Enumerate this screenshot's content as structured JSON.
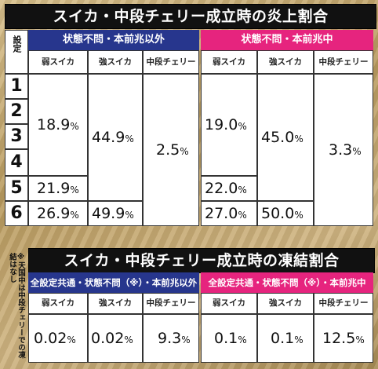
{
  "table1": {
    "title": "スイカ・中段チェリー成立時の炎上割合",
    "setting_label": "設定",
    "group_left": "状態不問・本前兆以外",
    "group_right": "状態不問・本前兆中",
    "col_headers": [
      "弱スイカ",
      "強スイカ",
      "中段チェリー",
      "弱スイカ",
      "強スイカ",
      "中段チェリー"
    ],
    "rows": [
      "1",
      "2",
      "3",
      "4",
      "5",
      "6"
    ],
    "left": {
      "weak_1to4": "18.9",
      "weak_5": "21.9",
      "weak_6": "26.9",
      "strong_1to5": "44.9",
      "strong_6": "49.9",
      "cherry_all": "2.5"
    },
    "right": {
      "weak_1to4": "19.0",
      "weak_5": "22.0",
      "weak_6": "27.0",
      "strong_1to5": "45.0",
      "strong_6": "50.0",
      "cherry_all": "3.3"
    },
    "unit": "%"
  },
  "table2": {
    "title": "スイカ・中段チェリー成立時の凍結割合",
    "group_left": "全設定共通・状態不問（※）・本前兆以外",
    "group_right": "全設定共通・状態不問（※）・本前兆中",
    "col_headers": [
      "弱スイカ",
      "強スイカ",
      "中段チェリー",
      "弱スイカ",
      "強スイカ",
      "中段チェリー"
    ],
    "values": [
      "0.02",
      "0.02",
      "9.3",
      "0.1",
      "0.1",
      "12.5"
    ],
    "unit": "%"
  },
  "note": "※天国中は中段チェリーでの凍結はなし"
}
